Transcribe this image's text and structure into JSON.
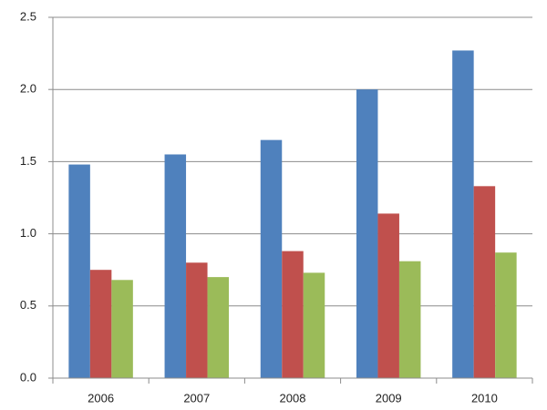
{
  "chart_data": {
    "type": "bar",
    "categories": [
      "2006",
      "2007",
      "2008",
      "2009",
      "2010"
    ],
    "series": [
      {
        "color": "#4f81bd",
        "values": [
          1.48,
          1.55,
          1.65,
          2.0,
          2.27
        ]
      },
      {
        "color": "#c0504d",
        "values": [
          0.75,
          0.8,
          0.88,
          1.14,
          1.33
        ]
      },
      {
        "color": "#9bbb59",
        "values": [
          0.68,
          0.7,
          0.73,
          0.81,
          0.87
        ]
      }
    ],
    "ylim": [
      0,
      2.5
    ],
    "yticks": [
      {
        "value": 0,
        "label": "0.0"
      },
      0.5,
      {
        "value": 1,
        "label": "1.0"
      },
      1.5,
      {
        "value": 2,
        "label": "2.0"
      },
      2.5
    ],
    "grid": true
  }
}
